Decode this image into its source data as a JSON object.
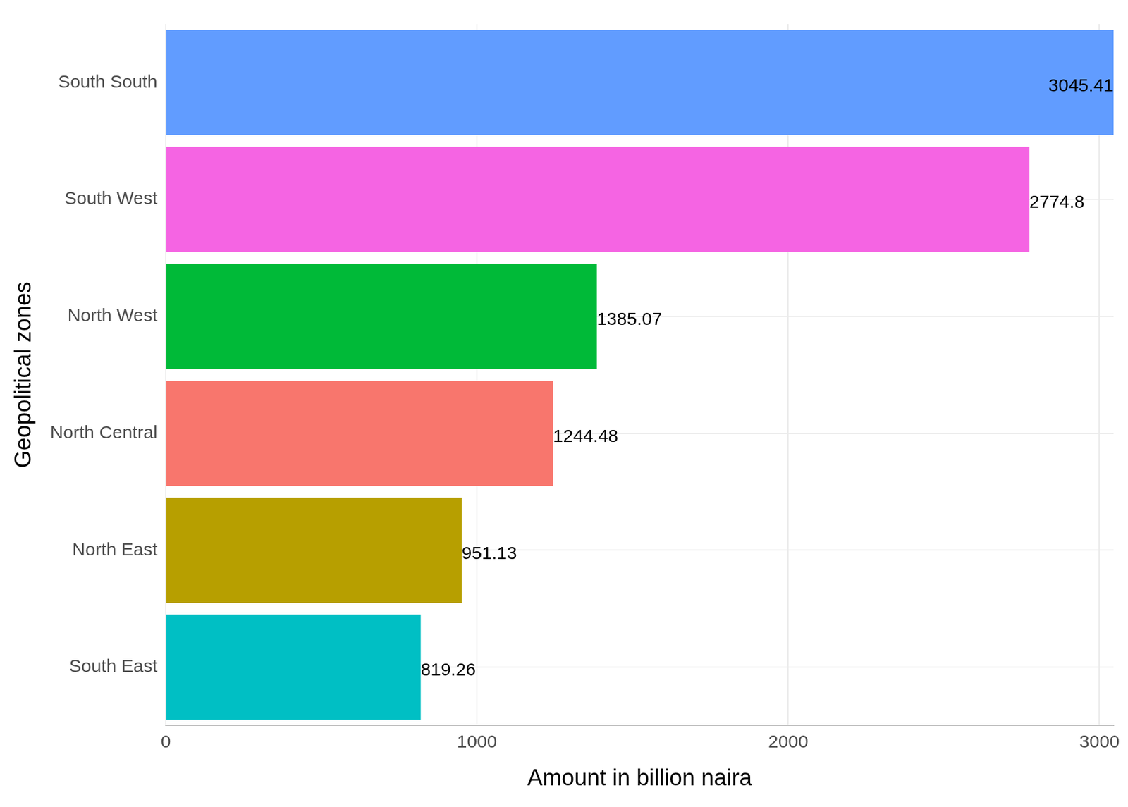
{
  "chart_data": {
    "type": "bar",
    "orientation": "horizontal",
    "x_label": "Amount in billion naira",
    "y_label": "Geopolitical zones",
    "categories": [
      "South South",
      "South West",
      "North West",
      "North Central",
      "North East",
      "South East"
    ],
    "values": [
      3045.41,
      2774.8,
      1385.07,
      1244.48,
      951.13,
      819.26
    ],
    "colors": [
      "#619CFF",
      "#F564E3",
      "#00BA38",
      "#F8766D",
      "#B79F00",
      "#00BFC4"
    ],
    "xlim": [
      0,
      3045.41
    ],
    "xticks": [
      0,
      1000,
      2000,
      3000
    ],
    "grid": true,
    "data_labels": true
  }
}
